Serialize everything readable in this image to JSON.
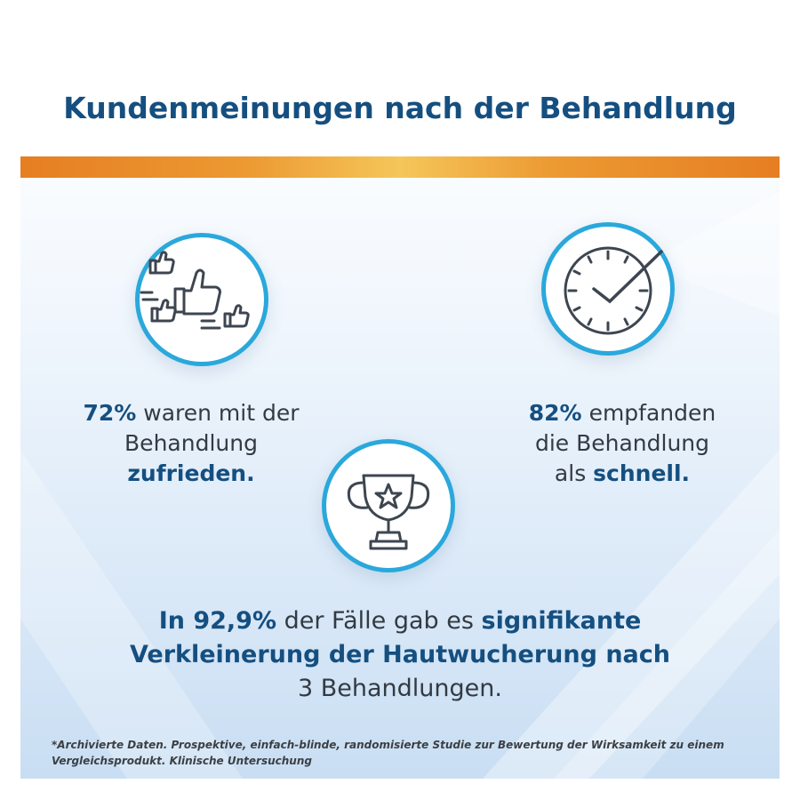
{
  "header": {
    "title": "Kundenmeinungen nach der Behandlung"
  },
  "colors": {
    "title": "#154f80",
    "accent_bar": "#e67e22",
    "circle_border": "#2aa8dc",
    "text": "#333a42"
  },
  "icons": {
    "left": "thumbs-up-icon",
    "right": "clock-check-icon",
    "center": "trophy-star-icon"
  },
  "stats": {
    "satisfied": {
      "percent": "72%",
      "text1": "waren mit der",
      "text2": "Behandlung",
      "emph": "zufrieden."
    },
    "fast": {
      "percent": "82%",
      "text1": "empfanden",
      "text2": "die Behandlung",
      "prefix": "als",
      "emph": "schnell."
    }
  },
  "result": {
    "lead": "In 92,9%",
    "mid": "der Fälle gab es",
    "emph1": "signifikante",
    "emph2": "Verkleinerung der Hautwucherung nach",
    "tail": "3 Behandlungen."
  },
  "footnote": {
    "line1": "*Archivierte Daten. Prospektive, einfach-blinde, randomisierte Studie zur Bewertung der Wirksamkeit zu einem",
    "line2": "Vergleichsprodukt. Klinische Untersuchung"
  }
}
